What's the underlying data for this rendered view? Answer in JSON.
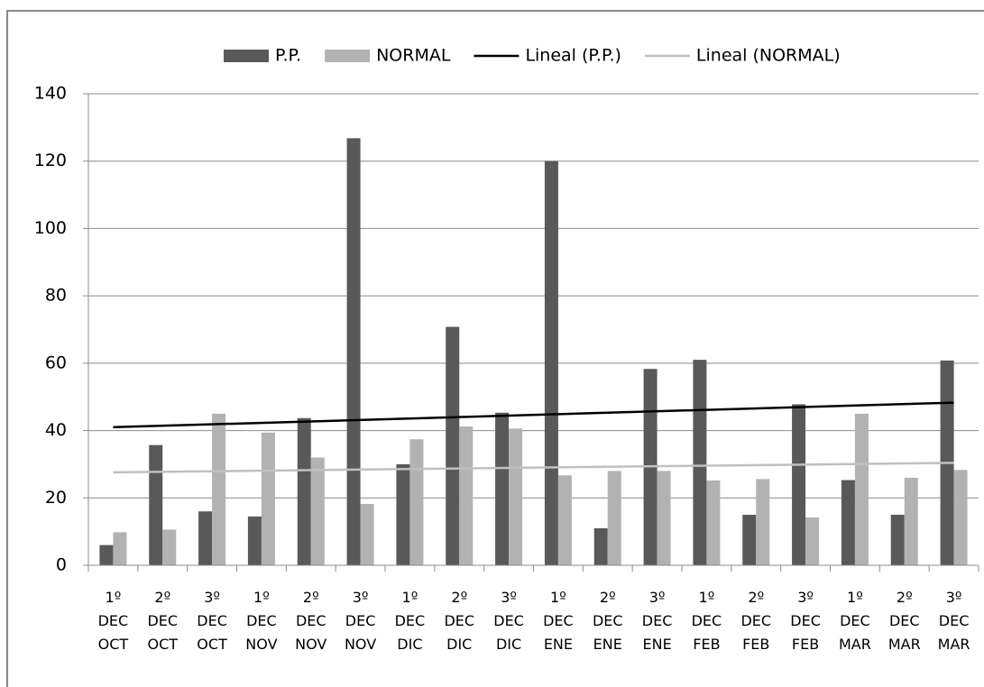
{
  "chart_data": {
    "type": "bar",
    "categories": [
      "1º DEC OCT",
      "2º DEC OCT",
      "3º DEC OCT",
      "1º DEC NOV",
      "2º DEC NOV",
      "3º DEC NOV",
      "1º DEC DIC",
      "2º DEC DIC",
      "3º DEC DIC",
      "1º DEC ENE",
      "2º DEC ENE",
      "3º DEC ENE",
      "1º DEC FEB",
      "2º DEC FEB",
      "3º DEC FEB",
      "1º DEC MAR",
      "2º DEC MAR",
      "3º DEC MAR"
    ],
    "series": [
      {
        "name": "P.P.",
        "color": "#595959",
        "values": [
          6,
          35.7,
          16,
          14.5,
          43.7,
          126.8,
          30,
          70.8,
          45.3,
          120,
          11,
          58.3,
          61,
          15,
          47.8,
          25.3,
          15,
          60.8
        ]
      },
      {
        "name": "NORMAL",
        "color": "#b2b2b2",
        "values": [
          9.8,
          10.6,
          45,
          39.4,
          32,
          18.2,
          37.4,
          41.2,
          40.6,
          26.7,
          28,
          28,
          25.2,
          25.6,
          14.2,
          45,
          26,
          28.3
        ]
      }
    ],
    "trendlines": [
      {
        "name": "Lineal (P.P.)",
        "color": "#000000",
        "values": [
          41,
          48.3
        ]
      },
      {
        "name": "Lineal (NORMAL)",
        "color": "#c0c0c0",
        "values": [
          27.6,
          30.4
        ]
      }
    ],
    "ylim": [
      0,
      140
    ],
    "yticks": [
      0,
      20,
      40,
      60,
      80,
      100,
      120,
      140
    ],
    "grid": true
  }
}
